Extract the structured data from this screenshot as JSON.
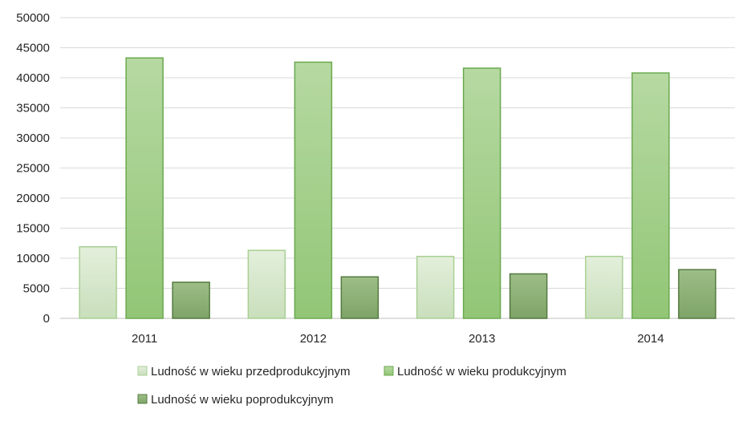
{
  "chart_data": {
    "type": "bar",
    "title": "",
    "xlabel": "",
    "ylabel": "",
    "categories": [
      "2011",
      "2012",
      "2013",
      "2014"
    ],
    "ylim": [
      0,
      50000
    ],
    "yticks": [
      0,
      5000,
      10000,
      15000,
      20000,
      25000,
      30000,
      35000,
      40000,
      45000,
      50000
    ],
    "grid": true,
    "legend_position": "bottom",
    "series": [
      {
        "name": "Ludność w wieku przedprodukcyjnym",
        "values": [
          11900,
          11300,
          10300,
          10300
        ],
        "color": "#d3e6c8"
      },
      {
        "name": "Ludność w wieku produkcyjnym",
        "values": [
          43300,
          42600,
          41600,
          40800
        ],
        "color": "#a6d18b"
      },
      {
        "name": "Ludność w wieku poprodukcyjnym",
        "values": [
          6000,
          6900,
          7400,
          8100
        ],
        "color": "#7fa86a"
      }
    ]
  }
}
